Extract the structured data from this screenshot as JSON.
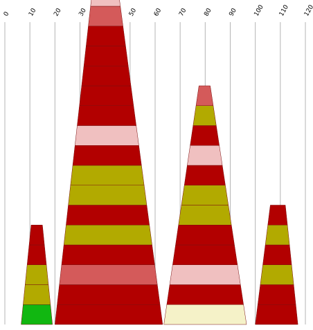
{
  "chart_data": {
    "type": "bar",
    "title": "",
    "xlabel": "",
    "ylabel": "",
    "xlim": [
      0,
      120
    ],
    "x_ticks": [
      "0",
      "10",
      "20",
      "30",
      "40",
      "50",
      "60",
      "70",
      "80",
      "90",
      "100",
      "110",
      "120"
    ],
    "grid": "vertical",
    "legend": "none",
    "colors": {
      "green": "#11b711",
      "pink": "#f0c0c0",
      "salmon": "#d45a5a",
      "red": "#b20000",
      "olive": "#b2aa00",
      "cream": "#f5f2c8"
    },
    "stacks": [
      {
        "bottom": [
          6.5,
          19
        ],
        "top": [
          10.5,
          15
        ],
        "segments": [
          "green",
          "olive",
          "olive",
          "red",
          "red"
        ]
      },
      {
        "bottom": [
          20,
          63
        ],
        "top": [
          36,
          44
        ],
        "segments": [
          "red",
          "red",
          "salmon",
          "red",
          "olive",
          "red",
          "olive",
          "olive",
          "red",
          "pink",
          "red",
          "red",
          "red",
          "red",
          "red",
          "salmon",
          "pink",
          "green"
        ]
      },
      {
        "bottom": [
          63.5,
          96.5
        ],
        "top": [
          77.5,
          82
        ],
        "segments": [
          "cream",
          "red",
          "pink",
          "red",
          "red",
          "olive",
          "olive",
          "red",
          "pink",
          "red",
          "olive",
          "salmon"
        ]
      },
      {
        "bottom": [
          100,
          117
        ],
        "top": [
          106,
          112
        ],
        "segments": [
          "red",
          "red",
          "olive",
          "red",
          "olive",
          "red"
        ]
      }
    ]
  }
}
